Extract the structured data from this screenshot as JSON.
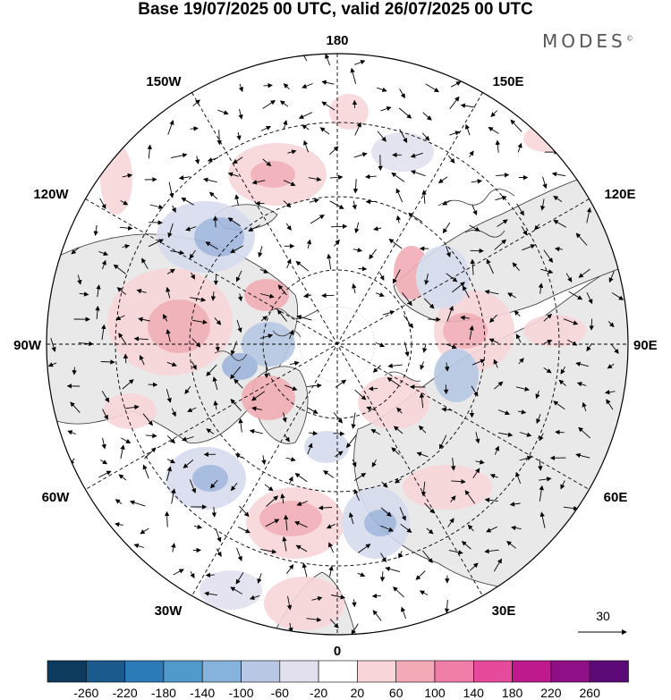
{
  "title": "Base 19/07/2025 00 UTC, valid 26/07/2025 00 UTC",
  "brand": "MODES",
  "brand_mark": "©",
  "longitude_labels": {
    "top": "180",
    "bottom": "0",
    "left": "90W",
    "right": "90E",
    "upper_left": "150W",
    "upper_right": "150E",
    "mid_upper_left": "120W",
    "mid_upper_right": "120E",
    "mid_lower_left": "60W",
    "mid_lower_right": "60E",
    "lower_left": "30W",
    "lower_right": "30E"
  },
  "reference_vector": {
    "label": "30"
  },
  "colorbar": {
    "labels": [
      "-260",
      "-220",
      "-180",
      "-140",
      "-100",
      "-60",
      "-20",
      "20",
      "60",
      "100",
      "140",
      "180",
      "220",
      "260"
    ],
    "colors": [
      "#0d3b5e",
      "#1b5a8c",
      "#2b7bb8",
      "#4f9acb",
      "#86b3dc",
      "#b8c8e4",
      "#e2e0ef",
      "#ffffff",
      "#f8d5d8",
      "#f3aab6",
      "#ef7fa8",
      "#e54a9b",
      "#be1a8d",
      "#8e0f86",
      "#5b0a78"
    ]
  },
  "anomaly_palette": {
    "blue": "#9fb6dc",
    "blue_light": "#d7dcee",
    "red": "#f2aeb6",
    "red_light": "#f8d6d9",
    "land": "#e9e9e9"
  }
}
